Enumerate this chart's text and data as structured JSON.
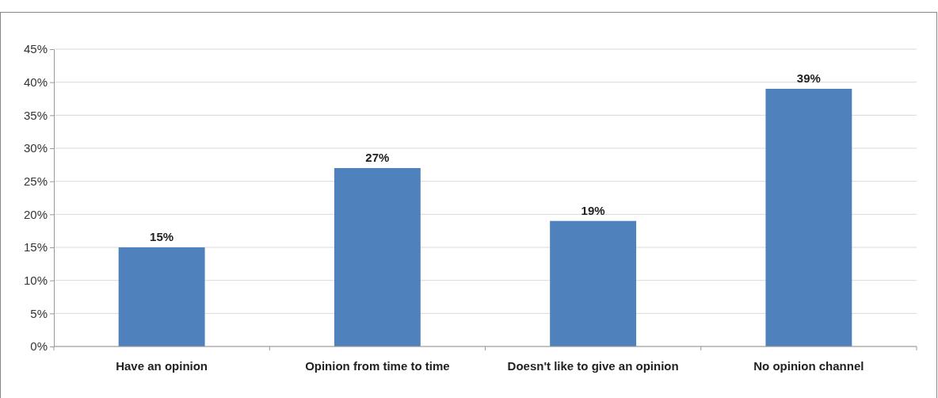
{
  "chart_data": {
    "type": "bar",
    "categories": [
      "Have an opinion",
      "Opinion from time to time",
      "Doesn't like to give an opinion",
      "No opinion channel"
    ],
    "values": [
      15,
      27,
      19,
      39
    ],
    "value_labels": [
      "15%",
      "27%",
      "19%",
      "39%"
    ],
    "color": "#4f81bd",
    "ylim": [
      0,
      45
    ],
    "yticks": [
      {
        "value": 0,
        "label": "0%"
      },
      {
        "value": 5,
        "label": "5%"
      },
      {
        "value": 10,
        "label": "10%"
      },
      {
        "value": 15,
        "label": "15%"
      },
      {
        "value": 20,
        "label": "20%"
      },
      {
        "value": 25,
        "label": "25%"
      },
      {
        "value": 30,
        "label": "30%"
      },
      {
        "value": 35,
        "label": "35%"
      },
      {
        "value": 40,
        "label": "40%"
      },
      {
        "value": 45,
        "label": "45%"
      }
    ],
    "grid": "y"
  }
}
